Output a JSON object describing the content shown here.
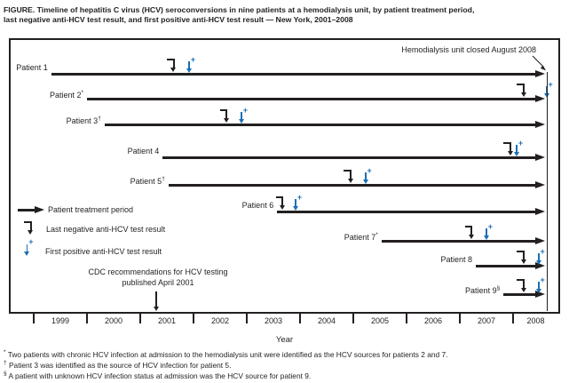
{
  "title": {
    "line1": "FIGURE. Timeline of hepatitis C virus (HCV) seroconversions in nine patients at a hemodialysis unit, by patient treatment period,",
    "line2": "last negative anti-HCV test result, and first positive anti-HCV test result — New York, 2001–2008"
  },
  "colors": {
    "ink": "#231f20",
    "positive_blue": "#1b6fb5"
  },
  "chart_data": {
    "type": "timeline",
    "x_axis": {
      "title": "Year",
      "years": [
        "1999",
        "2000",
        "2001",
        "2002",
        "2003",
        "2004",
        "2005",
        "2006",
        "2007",
        "2008"
      ],
      "range": [
        1999,
        2008.85
      ]
    },
    "treatment_end": 2008.65,
    "patients": [
      {
        "label": "Patient 1",
        "sup": "",
        "treatment_start": 1999.33,
        "last_negative": 2001.63,
        "first_positive": 2001.92
      },
      {
        "label": "Patient 2",
        "sup": "*",
        "treatment_start": 2000.0,
        "last_negative": 2008.2,
        "first_positive": 2008.63
      },
      {
        "label": "Patient 3",
        "sup": "†",
        "treatment_start": 2000.33,
        "last_negative": 2002.62,
        "first_positive": 2002.9
      },
      {
        "label": "Patient 4",
        "sup": "",
        "treatment_start": 2001.42,
        "last_negative": 2007.95,
        "first_positive": 2008.07
      },
      {
        "label": "Patient 5",
        "sup": "†",
        "treatment_start": 2001.53,
        "last_negative": 2004.95,
        "first_positive": 2005.23
      },
      {
        "label": "Patient 6",
        "sup": "",
        "treatment_start": 2003.57,
        "last_negative": 2003.67,
        "first_positive": 2003.92
      },
      {
        "label": "Patient 7",
        "sup": "*",
        "treatment_start": 2005.53,
        "last_negative": 2007.22,
        "first_positive": 2007.5
      },
      {
        "label": "Patient 8",
        "sup": "",
        "treatment_start": 2007.3,
        "last_negative": 2008.2,
        "first_positive": 2008.48
      },
      {
        "label": "Patient 9",
        "sup": "§",
        "treatment_start": 2007.82,
        "last_negative": 2008.2,
        "first_positive": 2008.48
      }
    ],
    "annotations": {
      "unit_closed": "Hemodialysis unit closed August 2008",
      "cdc_line1": "CDC recommendations for HCV testing",
      "cdc_line2": "published April 2001",
      "cdc_x_year": 2001.3
    }
  },
  "legend": {
    "items": [
      {
        "glyph": "treatment-arrow",
        "label": "Patient treatment period"
      },
      {
        "glyph": "last-negative-marker",
        "label": "Last negative anti-HCV test result"
      },
      {
        "glyph": "first-positive-marker",
        "label": "First positive anti-HCV test result"
      }
    ]
  },
  "footnotes": [
    {
      "symbol": "*",
      "text": "Two patients with chronic HCV infection at admission to the hemodialysis unit were identified as the HCV sources for patients 2 and 7."
    },
    {
      "symbol": "†",
      "text": "Patient 3 was identified as the source of HCV infection for patient 5."
    },
    {
      "symbol": "§",
      "text": "A patient with unknown HCV infection status at admission was the HCV source for patient 9."
    }
  ]
}
